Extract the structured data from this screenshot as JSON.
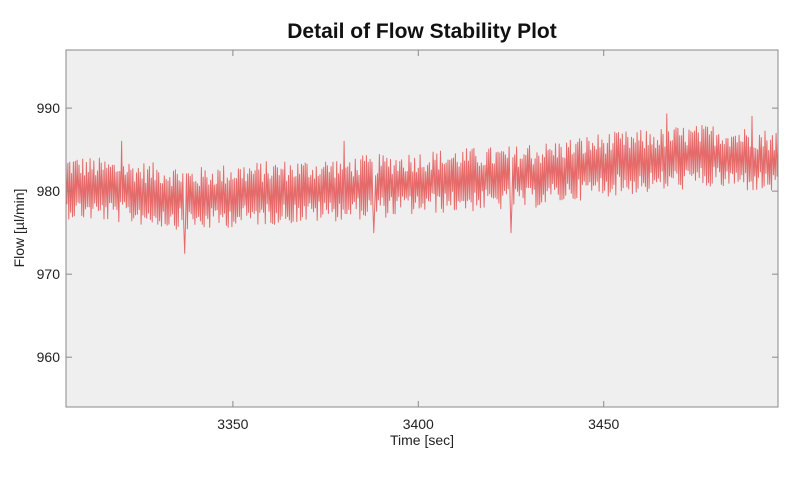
{
  "chart_data": {
    "type": "line",
    "title": "Detail of Flow Stability Plot",
    "xlabel": "Time [sec]",
    "ylabel": "Flow [µl/min]",
    "xlim": [
      3305,
      3497
    ],
    "ylim": [
      954,
      997
    ],
    "xticks": [
      3350,
      3400,
      3450
    ],
    "yticks": [
      960,
      970,
      980,
      990
    ],
    "grid": false,
    "colors": {
      "plot_background": "#efefef",
      "series": "#e56b6b",
      "frame": "#8a8a8a"
    },
    "series": [
      {
        "values_note_free": true,
        "trend": [
          [
            3305,
            980.5
          ],
          [
            3320,
            980.0
          ],
          [
            3330,
            979.5
          ],
          [
            3340,
            979.0
          ],
          [
            3350,
            979.5
          ],
          [
            3360,
            979.8
          ],
          [
            3370,
            980.0
          ],
          [
            3380,
            980.3
          ],
          [
            3390,
            980.6
          ],
          [
            3400,
            981.0
          ],
          [
            3410,
            981.3
          ],
          [
            3420,
            981.5
          ],
          [
            3430,
            981.7
          ],
          [
            3440,
            982.5
          ],
          [
            3450,
            983.2
          ],
          [
            3460,
            983.5
          ],
          [
            3470,
            984.0
          ],
          [
            3480,
            984.2
          ],
          [
            3490,
            983.8
          ],
          [
            3497,
            983.5
          ]
        ],
        "amplitude": 3.5,
        "peaks": [
          [
            3320,
            986.0
          ],
          [
            3337,
            972.5
          ],
          [
            3380,
            986.0
          ],
          [
            3388,
            975.0
          ],
          [
            3425,
            975.0
          ],
          [
            3430,
            985.5
          ],
          [
            3467,
            989.3
          ],
          [
            3490,
            989.0
          ]
        ],
        "samples_per_second": 4
      }
    ]
  }
}
